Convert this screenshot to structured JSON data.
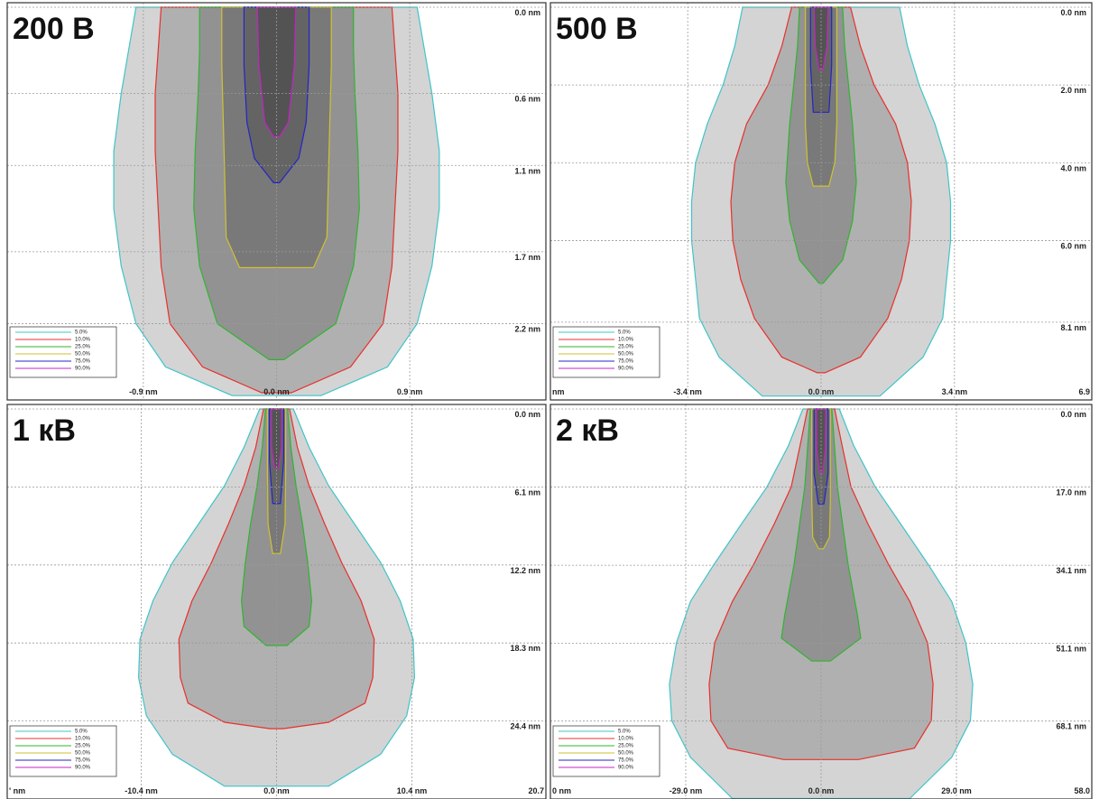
{
  "chart_data": [
    {
      "type": "contour",
      "title": "200 В",
      "grid": true,
      "legend": "lower left",
      "xlim": [
        -1.82,
        1.82
      ],
      "xticks": [
        {
          "value": -0.9,
          "label": "-0.9 nm"
        },
        {
          "value": 0,
          "label": "0.0 nm"
        },
        {
          "value": 0.9,
          "label": "0.9 nm"
        }
      ],
      "ylim": [
        0,
        2.73
      ],
      "yticks": [
        {
          "value": 0,
          "label": "0.0 nm"
        },
        {
          "value": 0.6,
          "label": "0.6 nm"
        },
        {
          "value": 1.1,
          "label": "1.1 nm"
        },
        {
          "value": 1.7,
          "label": "1.7 nm"
        },
        {
          "value": 2.2,
          "label": "2.2 nm"
        }
      ],
      "series": [
        {
          "name": "5.0%",
          "color": "#3fc4c8",
          "depth": [
            0,
            0.3,
            0.6,
            1.0,
            1.4,
            1.8,
            2.2,
            2.5,
            2.7
          ],
          "values": [
            0.95,
            1.0,
            1.05,
            1.1,
            1.1,
            1.05,
            0.95,
            0.75,
            0.3
          ]
        },
        {
          "name": "10.0%",
          "color": "#e8302c",
          "depth": [
            0,
            0.3,
            0.6,
            1.0,
            1.4,
            1.8,
            2.2,
            2.5,
            2.68
          ],
          "values": [
            0.78,
            0.8,
            0.82,
            0.82,
            0.8,
            0.78,
            0.72,
            0.5,
            0.1
          ]
        },
        {
          "name": "25.0%",
          "color": "#2fb52f",
          "depth": [
            0,
            0.3,
            0.6,
            1.0,
            1.4,
            1.8,
            2.2,
            2.45
          ],
          "values": [
            0.52,
            0.52,
            0.53,
            0.55,
            0.56,
            0.52,
            0.4,
            0.05
          ]
        },
        {
          "name": "50.0%",
          "color": "#cfc232",
          "depth": [
            0,
            0.4,
            0.8,
            1.2,
            1.6,
            1.81
          ],
          "values": [
            0.37,
            0.37,
            0.36,
            0.35,
            0.34,
            0.25
          ]
        },
        {
          "name": "75.0%",
          "color": "#2424c8",
          "depth": [
            0,
            0.4,
            0.8,
            1.05,
            1.22
          ],
          "values": [
            0.22,
            0.22,
            0.2,
            0.15,
            0.02
          ]
        },
        {
          "name": "90.0%",
          "color": "#c424c4",
          "depth": [
            0,
            0.4,
            0.8,
            0.9
          ],
          "values": [
            0.13,
            0.12,
            0.08,
            0.02
          ]
        }
      ]
    },
    {
      "type": "contour",
      "title": "500 В",
      "grid": true,
      "legend": "lower left",
      "xlim": [
        -6.9,
        6.9
      ],
      "xticks": [
        {
          "value": -6.9,
          "label": "nm"
        },
        {
          "value": -3.4,
          "label": "-3.4 nm"
        },
        {
          "value": 0,
          "label": "0.0 nm"
        },
        {
          "value": 3.4,
          "label": "3.4 nm"
        },
        {
          "value": 6.9,
          "label": "6.9"
        }
      ],
      "ylim": [
        0,
        10.1
      ],
      "yticks": [
        {
          "value": 0,
          "label": "0.0 nm"
        },
        {
          "value": 2.0,
          "label": "2.0 nm"
        },
        {
          "value": 4.0,
          "label": "4.0 nm"
        },
        {
          "value": 6.0,
          "label": "6.0 nm"
        },
        {
          "value": 8.1,
          "label": "8.1 nm"
        }
      ],
      "series": [
        {
          "name": "5.0%",
          "color": "#3fc4c8",
          "depth": [
            0,
            1,
            2,
            3,
            4,
            5,
            6,
            7,
            8,
            9,
            10
          ],
          "values": [
            2.0,
            2.2,
            2.5,
            2.9,
            3.2,
            3.3,
            3.3,
            3.2,
            3.1,
            2.6,
            1.5
          ]
        },
        {
          "name": "10.0%",
          "color": "#e8302c",
          "depth": [
            0,
            1,
            2,
            3,
            4,
            5,
            6,
            7,
            8,
            9,
            9.4
          ],
          "values": [
            0.75,
            1.0,
            1.35,
            1.9,
            2.2,
            2.3,
            2.25,
            2.05,
            1.7,
            1.0,
            0.1
          ]
        },
        {
          "name": "25.0%",
          "color": "#2fb52f",
          "depth": [
            0,
            1,
            2,
            3,
            4.5,
            5.5,
            6.5,
            7.1
          ],
          "values": [
            0.55,
            0.6,
            0.7,
            0.8,
            0.9,
            0.8,
            0.55,
            0.05
          ]
        },
        {
          "name": "50.0%",
          "color": "#cfc232",
          "depth": [
            0,
            1.5,
            3,
            4,
            4.6
          ],
          "values": [
            0.4,
            0.4,
            0.4,
            0.35,
            0.2
          ]
        },
        {
          "name": "75.0%",
          "color": "#2424c8",
          "depth": [
            0,
            1.5,
            2.7
          ],
          "values": [
            0.27,
            0.27,
            0.2
          ]
        },
        {
          "name": "90.0%",
          "color": "#c424c4",
          "depth": [
            0,
            1.0,
            1.6
          ],
          "values": [
            0.18,
            0.15,
            0.05
          ]
        }
      ]
    },
    {
      "type": "contour",
      "title": "1 кВ",
      "grid": true,
      "legend": "lower left",
      "xlim": [
        -20.7,
        20.7
      ],
      "xticks": [
        {
          "value": -20.7,
          "label": "' nm"
        },
        {
          "value": -10.4,
          "label": "-10.4 nm"
        },
        {
          "value": 0,
          "label": "0.0 nm"
        },
        {
          "value": 10.4,
          "label": "10.4 nm"
        },
        {
          "value": 20.7,
          "label": "20.7"
        }
      ],
      "ylim": [
        0,
        30.5
      ],
      "yticks": [
        {
          "value": 0,
          "label": "0.0 nm"
        },
        {
          "value": 6.1,
          "label": "6.1 nm"
        },
        {
          "value": 12.2,
          "label": "12.2 nm"
        },
        {
          "value": 18.3,
          "label": "18.3 nm"
        },
        {
          "value": 24.4,
          "label": "24.4 nm"
        }
      ],
      "series": [
        {
          "name": "5.0%",
          "color": "#3fc4c8",
          "depth": [
            0,
            3,
            6,
            9,
            12,
            15,
            18,
            21,
            24,
            27,
            29.5
          ],
          "values": [
            1.3,
            2.5,
            4.0,
            6.0,
            8.0,
            9.5,
            10.5,
            10.6,
            10.0,
            8.0,
            4.0
          ]
        },
        {
          "name": "10.0%",
          "color": "#e8302c",
          "depth": [
            0,
            3,
            6,
            9,
            12,
            15,
            18,
            21,
            23,
            24.5,
            25
          ],
          "values": [
            1.0,
            1.6,
            2.5,
            3.7,
            5.0,
            6.5,
            7.5,
            7.4,
            6.8,
            4.0,
            0.5
          ]
        },
        {
          "name": "25.0%",
          "color": "#2fb52f",
          "depth": [
            0,
            3,
            6,
            9,
            12,
            15,
            17,
            18.5
          ],
          "values": [
            0.85,
            1.1,
            1.5,
            2.0,
            2.4,
            2.7,
            2.5,
            0.8
          ]
        },
        {
          "name": "50.0%",
          "color": "#cfc232",
          "depth": [
            0,
            5,
            9,
            11.3
          ],
          "values": [
            0.7,
            0.7,
            0.65,
            0.3
          ]
        },
        {
          "name": "75.0%",
          "color": "#2424c8",
          "depth": [
            0,
            4,
            7.4
          ],
          "values": [
            0.55,
            0.55,
            0.3
          ]
        },
        {
          "name": "90.0%",
          "color": "#c424c4",
          "depth": [
            0,
            3,
            4.6
          ],
          "values": [
            0.4,
            0.38,
            0.15
          ]
        }
      ]
    },
    {
      "type": "contour",
      "title": "2 кВ",
      "grid": true,
      "legend": "lower left",
      "xlim": [
        -58.0,
        58.0
      ],
      "xticks": [
        {
          "value": -58.0,
          "label": "0 nm"
        },
        {
          "value": -29.0,
          "label": "-29.0 nm"
        },
        {
          "value": 0,
          "label": "0.0 nm"
        },
        {
          "value": 29.0,
          "label": "29.0 nm"
        },
        {
          "value": 58.0,
          "label": "58.0"
        }
      ],
      "ylim": [
        0,
        85.1
      ],
      "yticks": [
        {
          "value": 0,
          "label": "0.0 nm"
        },
        {
          "value": 17.0,
          "label": "17.0 nm"
        },
        {
          "value": 34.1,
          "label": "34.1 nm"
        },
        {
          "value": 51.1,
          "label": "51.1 nm"
        },
        {
          "value": 68.1,
          "label": "68.1 nm"
        }
      ],
      "series": [
        {
          "name": "5.0%",
          "color": "#3fc4c8",
          "depth": [
            0,
            8,
            17,
            25,
            34,
            42,
            51,
            60,
            68,
            76,
            85
          ],
          "values": [
            3.9,
            7,
            11.6,
            17,
            23,
            28,
            31,
            32.5,
            32,
            28,
            19
          ]
        },
        {
          "name": "10.0%",
          "color": "#e8302c",
          "depth": [
            0,
            8,
            17,
            25,
            34,
            42,
            51,
            60,
            68,
            74,
            76.5
          ],
          "values": [
            2.9,
            4.5,
            6.4,
            10,
            14.5,
            19,
            22.8,
            24,
            23.6,
            20,
            8
          ]
        },
        {
          "name": "25.0%",
          "color": "#2fb52f",
          "depth": [
            0,
            17,
            34,
            45,
            50,
            55
          ],
          "values": [
            2.3,
            3.5,
            5.8,
            7.8,
            8.5,
            2
          ]
        },
        {
          "name": "50.0%",
          "color": "#cfc232",
          "depth": [
            0,
            20,
            28,
            30.5
          ],
          "values": [
            2,
            2,
            1.8,
            0.5
          ]
        },
        {
          "name": "75.0%",
          "color": "#2424c8",
          "depth": [
            0,
            14,
            20.7
          ],
          "values": [
            1.5,
            1.5,
            0.6
          ]
        },
        {
          "name": "90.0%",
          "color": "#c424c4",
          "depth": [
            0,
            9,
            13.8
          ],
          "values": [
            1.0,
            0.9,
            0.3
          ]
        }
      ]
    }
  ]
}
